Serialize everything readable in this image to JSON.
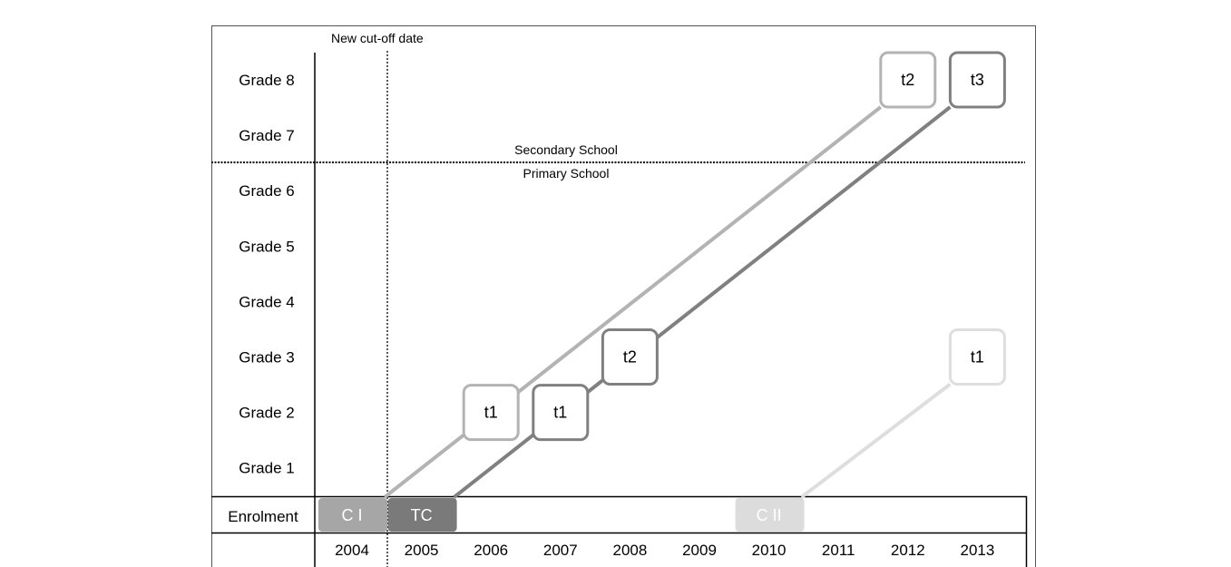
{
  "labels": {
    "cutoff": "New cut-off date",
    "secondary": "Secondary School",
    "primary": "Primary School",
    "enrolment": "Enrolment"
  },
  "grades": [
    "Grade 8",
    "Grade 7",
    "Grade 6",
    "Grade 5",
    "Grade 4",
    "Grade 3",
    "Grade 2",
    "Grade 1"
  ],
  "years": [
    "2004",
    "2005",
    "2006",
    "2007",
    "2008",
    "2009",
    "2010",
    "2011",
    "2012",
    "2013"
  ],
  "cohorts": [
    {
      "id": "ci",
      "label": "C I",
      "enrol_year": "2004",
      "color": "#a6a6a6",
      "line_color": "#b3b3b3",
      "tests": [
        {
          "label": "t1",
          "year": "2006",
          "grade": "Grade 2"
        },
        {
          "label": "t2",
          "year": "2012",
          "grade": "Grade 8"
        }
      ]
    },
    {
      "id": "tc",
      "label": "TC",
      "enrol_year": "2005",
      "color": "#7a7a7a",
      "line_color": "#808080",
      "tests": [
        {
          "label": "t1",
          "year": "2007",
          "grade": "Grade 2"
        },
        {
          "label": "t2",
          "year": "2008",
          "grade": "Grade 3"
        },
        {
          "label": "t3",
          "year": "2013",
          "grade": "Grade 8"
        }
      ]
    },
    {
      "id": "cii",
      "label": "C II",
      "enrol_year": "2010",
      "color": "#dcdcdc",
      "line_color": "#dedede",
      "tests": [
        {
          "label": "t1",
          "year": "2013",
          "grade": "Grade 3"
        }
      ]
    }
  ]
}
